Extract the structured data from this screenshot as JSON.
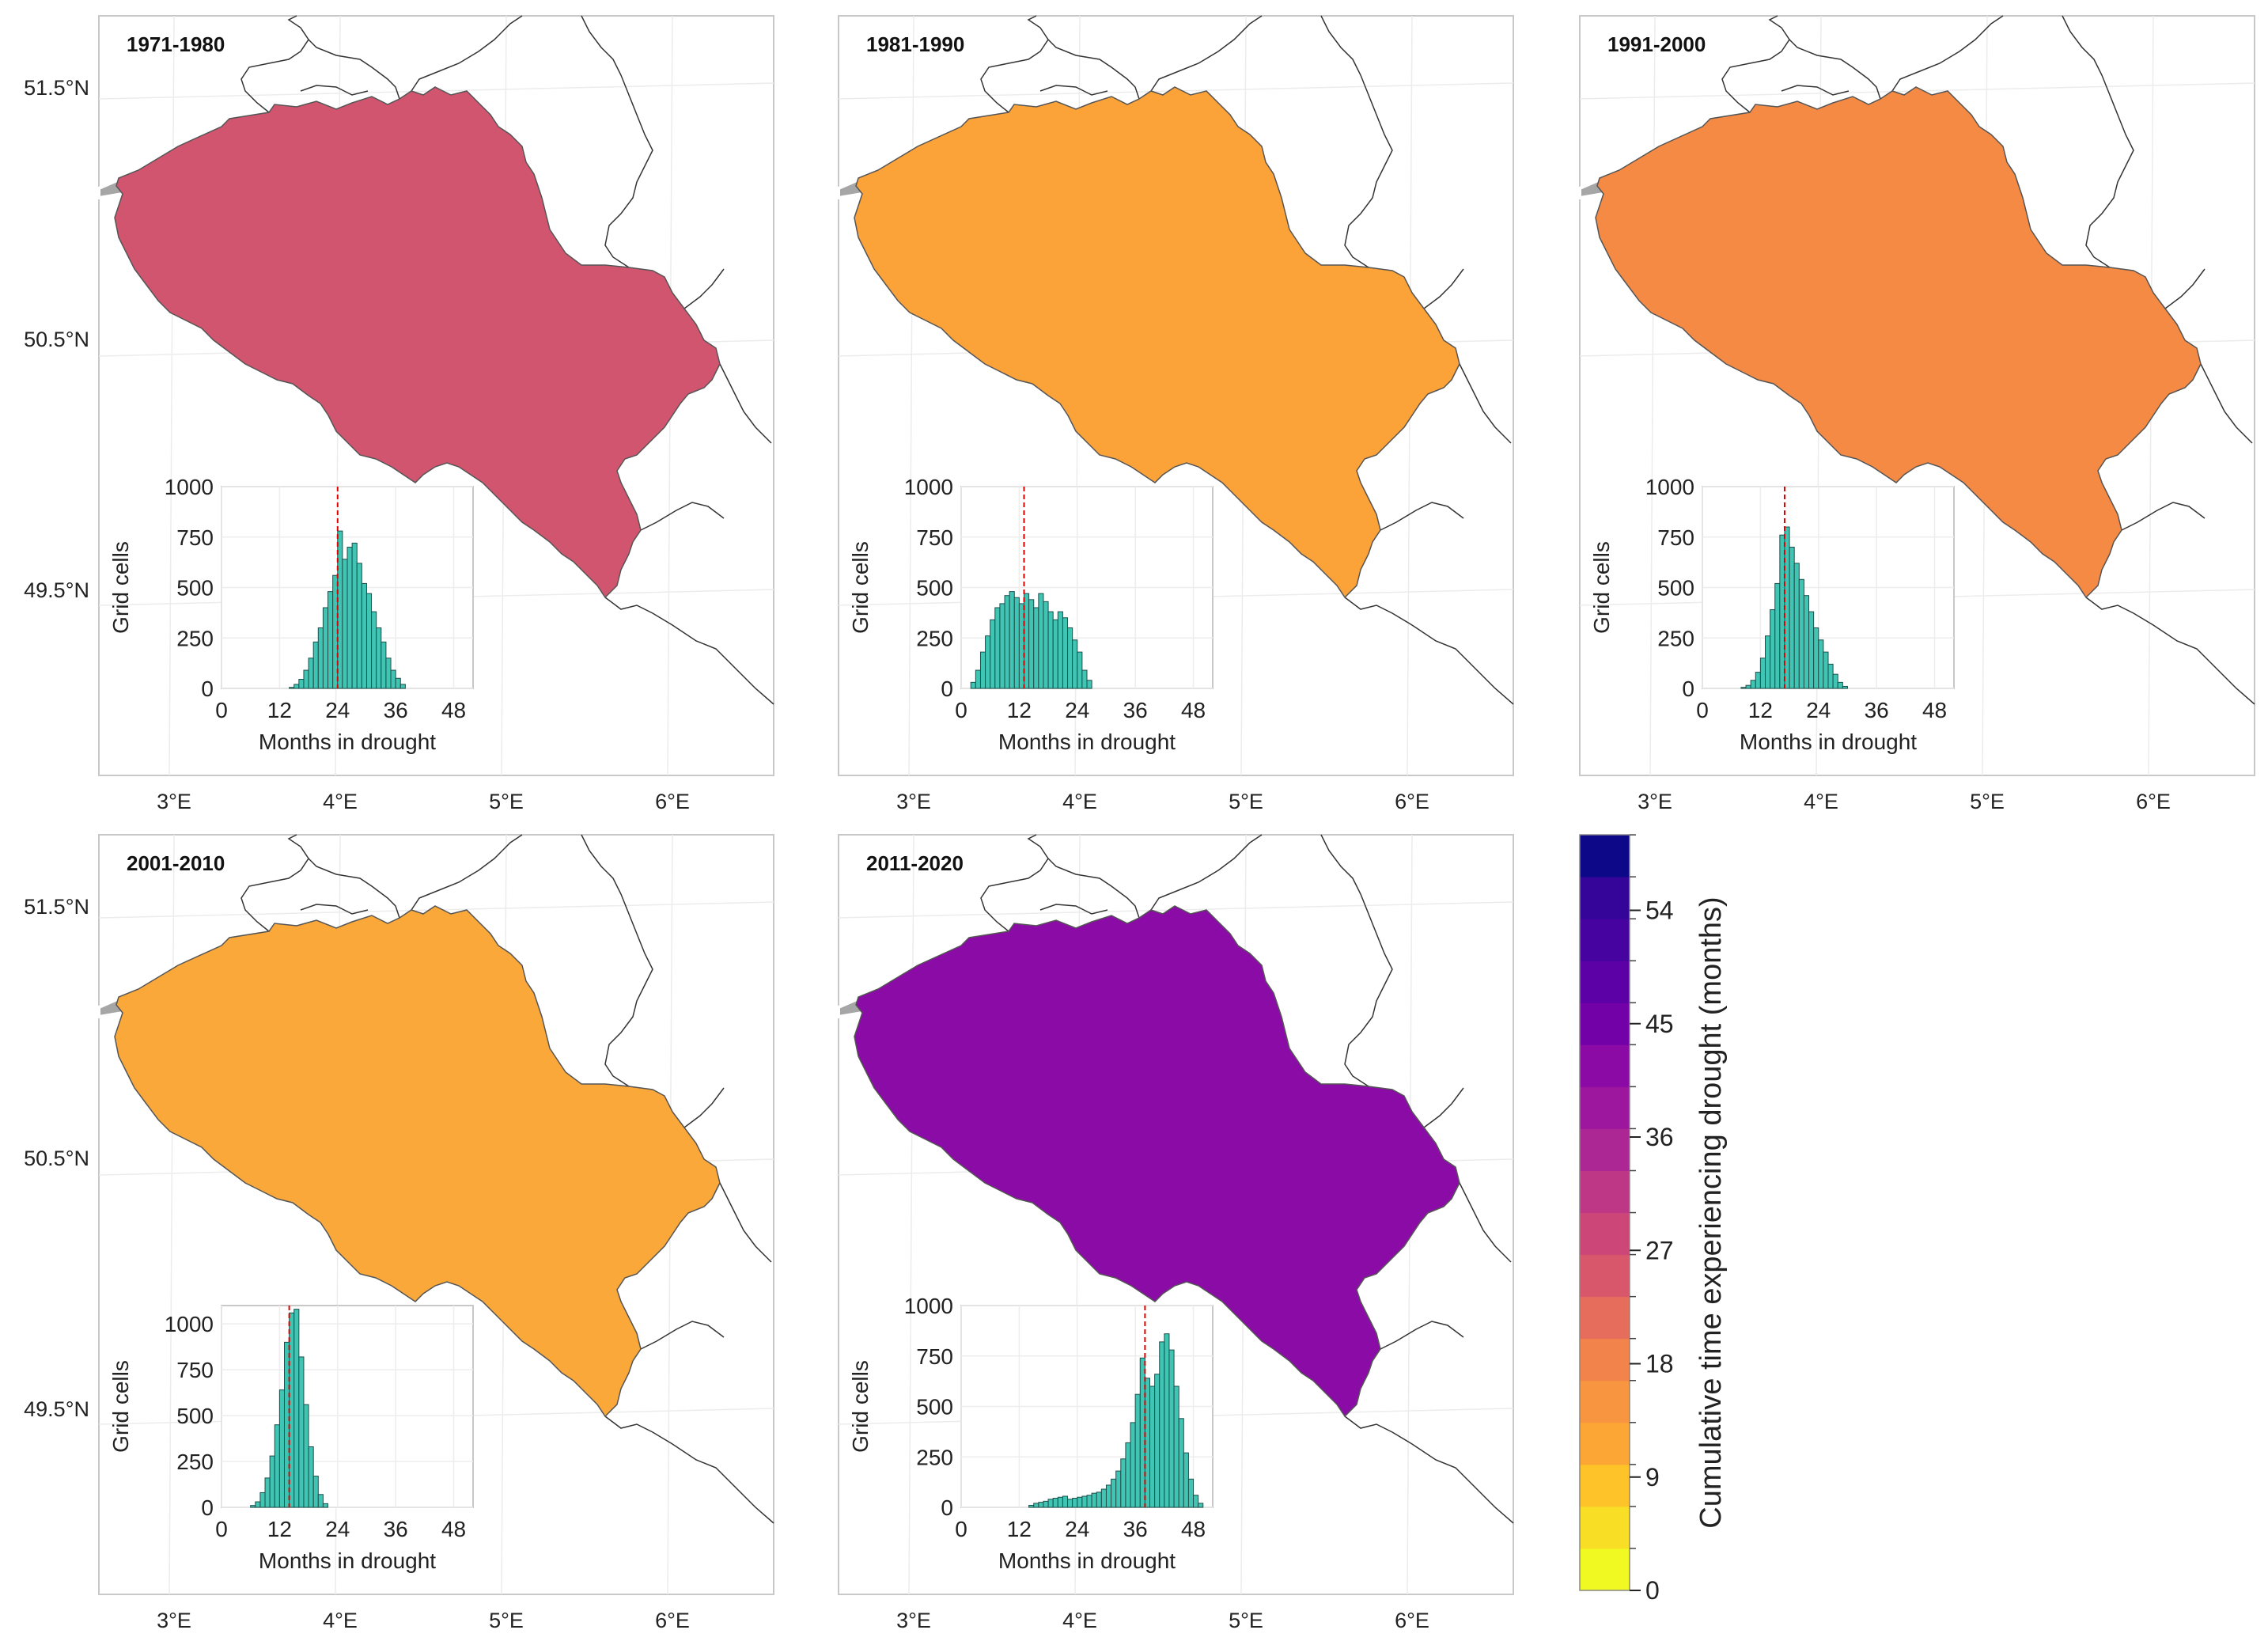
{
  "chart_data": {
    "type": "heatmap",
    "description_of_axes": {
      "x_ticks": [
        "3°E",
        "4°E",
        "5°E",
        "6°E"
      ],
      "y_ticks": [
        "51.5°N",
        "50.5°N",
        "49.5°N"
      ]
    },
    "colorbar": {
      "label": "Cumulative time experiencing drought (months)",
      "ticks": [
        0,
        9,
        18,
        27,
        36,
        45,
        54
      ],
      "range": [
        0,
        60
      ],
      "colormap": "plasma_r",
      "colors": [
        "#f0f921",
        "#f8df25",
        "#fdc328",
        "#fca636",
        "#f89540",
        "#f2844b",
        "#e66c5c",
        "#d8576b",
        "#cc4778",
        "#bd3786",
        "#ac2694",
        "#9c179e",
        "#8b0aa5",
        "#7201a8",
        "#5c01a6",
        "#46039f",
        "#350498",
        "#0d0887"
      ]
    },
    "panels": [
      {
        "title": "1971-1980",
        "map_color": "#d1556f",
        "median_months": 24,
        "histogram": {
          "xlabel": "Months in drought",
          "ylabel": "Grid cells",
          "xticks": [
            0,
            12,
            24,
            36,
            48
          ],
          "yticks": [
            0,
            250,
            500,
            750,
            1000
          ],
          "xlim": [
            0,
            52
          ],
          "ylim": [
            0,
            1000
          ],
          "bins": [
            [
              14,
              5
            ],
            [
              15,
              20
            ],
            [
              16,
              45
            ],
            [
              17,
              90
            ],
            [
              18,
              150
            ],
            [
              19,
              230
            ],
            [
              20,
              300
            ],
            [
              21,
              400
            ],
            [
              22,
              480
            ],
            [
              23,
              560
            ],
            [
              24,
              780
            ],
            [
              25,
              640
            ],
            [
              26,
              700
            ],
            [
              27,
              720
            ],
            [
              28,
              620
            ],
            [
              29,
              520
            ],
            [
              30,
              470
            ],
            [
              31,
              380
            ],
            [
              32,
              300
            ],
            [
              33,
              230
            ],
            [
              34,
              150
            ],
            [
              35,
              90
            ],
            [
              36,
              50
            ],
            [
              37,
              20
            ]
          ]
        }
      },
      {
        "title": "1981-1990",
        "map_color": "#fba238",
        "median_months": 13,
        "histogram": {
          "xlabel": "Months in drought",
          "ylabel": "Grid cells",
          "xticks": [
            0,
            12,
            24,
            36,
            48
          ],
          "yticks": [
            0,
            250,
            500,
            750,
            1000
          ],
          "xlim": [
            0,
            52
          ],
          "ylim": [
            0,
            1000
          ],
          "bins": [
            [
              2,
              30
            ],
            [
              3,
              90
            ],
            [
              4,
              180
            ],
            [
              5,
              260
            ],
            [
              6,
              340
            ],
            [
              7,
              400
            ],
            [
              8,
              420
            ],
            [
              9,
              460
            ],
            [
              10,
              480
            ],
            [
              11,
              450
            ],
            [
              12,
              420
            ],
            [
              13,
              470
            ],
            [
              14,
              440
            ],
            [
              15,
              400
            ],
            [
              16,
              470
            ],
            [
              17,
              430
            ],
            [
              18,
              380
            ],
            [
              19,
              340
            ],
            [
              20,
              380
            ],
            [
              21,
              350
            ],
            [
              22,
              300
            ],
            [
              23,
              240
            ],
            [
              24,
              180
            ],
            [
              25,
              90
            ],
            [
              26,
              40
            ]
          ]
        }
      },
      {
        "title": "1991-2000",
        "map_color": "#f48a44",
        "median_months": 17,
        "histogram": {
          "xlabel": "Months in drought",
          "ylabel": "Grid cells",
          "xticks": [
            0,
            12,
            24,
            36,
            48
          ],
          "yticks": [
            0,
            250,
            500,
            750,
            1000
          ],
          "xlim": [
            0,
            52
          ],
          "ylim": [
            0,
            1000
          ],
          "bins": [
            [
              8,
              5
            ],
            [
              9,
              15
            ],
            [
              10,
              40
            ],
            [
              11,
              80
            ],
            [
              12,
              150
            ],
            [
              13,
              260
            ],
            [
              14,
              390
            ],
            [
              15,
              520
            ],
            [
              16,
              760
            ],
            [
              17,
              800
            ],
            [
              18,
              700
            ],
            [
              19,
              620
            ],
            [
              20,
              540
            ],
            [
              21,
              460
            ],
            [
              22,
              380
            ],
            [
              23,
              300
            ],
            [
              24,
              240
            ],
            [
              25,
              180
            ],
            [
              26,
              120
            ],
            [
              27,
              70
            ],
            [
              28,
              30
            ],
            [
              29,
              10
            ]
          ]
        }
      },
      {
        "title": "2001-2010",
        "map_color": "#faa83a",
        "median_months": 14,
        "histogram": {
          "xlabel": "Months in drought",
          "ylabel": "Grid cells",
          "xticks": [
            0,
            12,
            24,
            36,
            48
          ],
          "yticks": [
            0,
            250,
            500,
            750,
            1000
          ],
          "xlim": [
            0,
            52
          ],
          "ylim": [
            0,
            1100
          ],
          "bins": [
            [
              6,
              10
            ],
            [
              7,
              30
            ],
            [
              8,
              80
            ],
            [
              9,
              160
            ],
            [
              10,
              280
            ],
            [
              11,
              450
            ],
            [
              12,
              640
            ],
            [
              13,
              900
            ],
            [
              14,
              1060
            ],
            [
              15,
              1080
            ],
            [
              16,
              820
            ],
            [
              17,
              560
            ],
            [
              18,
              330
            ],
            [
              19,
              170
            ],
            [
              20,
              70
            ],
            [
              21,
              20
            ]
          ]
        }
      },
      {
        "title": "2011-2020",
        "map_color": "#8a0ba5",
        "median_months": 38,
        "histogram": {
          "xlabel": "Months in drought",
          "ylabel": "Grid cells",
          "xticks": [
            0,
            12,
            24,
            36,
            48
          ],
          "yticks": [
            0,
            250,
            500,
            750,
            1000
          ],
          "xlim": [
            0,
            52
          ],
          "ylim": [
            0,
            1000
          ],
          "bins": [
            [
              14,
              10
            ],
            [
              15,
              20
            ],
            [
              16,
              25
            ],
            [
              17,
              30
            ],
            [
              18,
              40
            ],
            [
              19,
              45
            ],
            [
              20,
              50
            ],
            [
              21,
              55
            ],
            [
              22,
              40
            ],
            [
              23,
              45
            ],
            [
              24,
              50
            ],
            [
              25,
              55
            ],
            [
              26,
              60
            ],
            [
              27,
              70
            ],
            [
              28,
              75
            ],
            [
              29,
              90
            ],
            [
              30,
              110
            ],
            [
              31,
              140
            ],
            [
              32,
              180
            ],
            [
              33,
              240
            ],
            [
              34,
              320
            ],
            [
              35,
              420
            ],
            [
              36,
              560
            ],
            [
              37,
              740
            ],
            [
              38,
              640
            ],
            [
              39,
              600
            ],
            [
              40,
              660
            ],
            [
              41,
              820
            ],
            [
              42,
              860
            ],
            [
              43,
              780
            ],
            [
              44,
              600
            ],
            [
              45,
              440
            ],
            [
              46,
              270
            ],
            [
              47,
              140
            ],
            [
              48,
              60
            ],
            [
              49,
              20
            ]
          ]
        }
      }
    ]
  }
}
